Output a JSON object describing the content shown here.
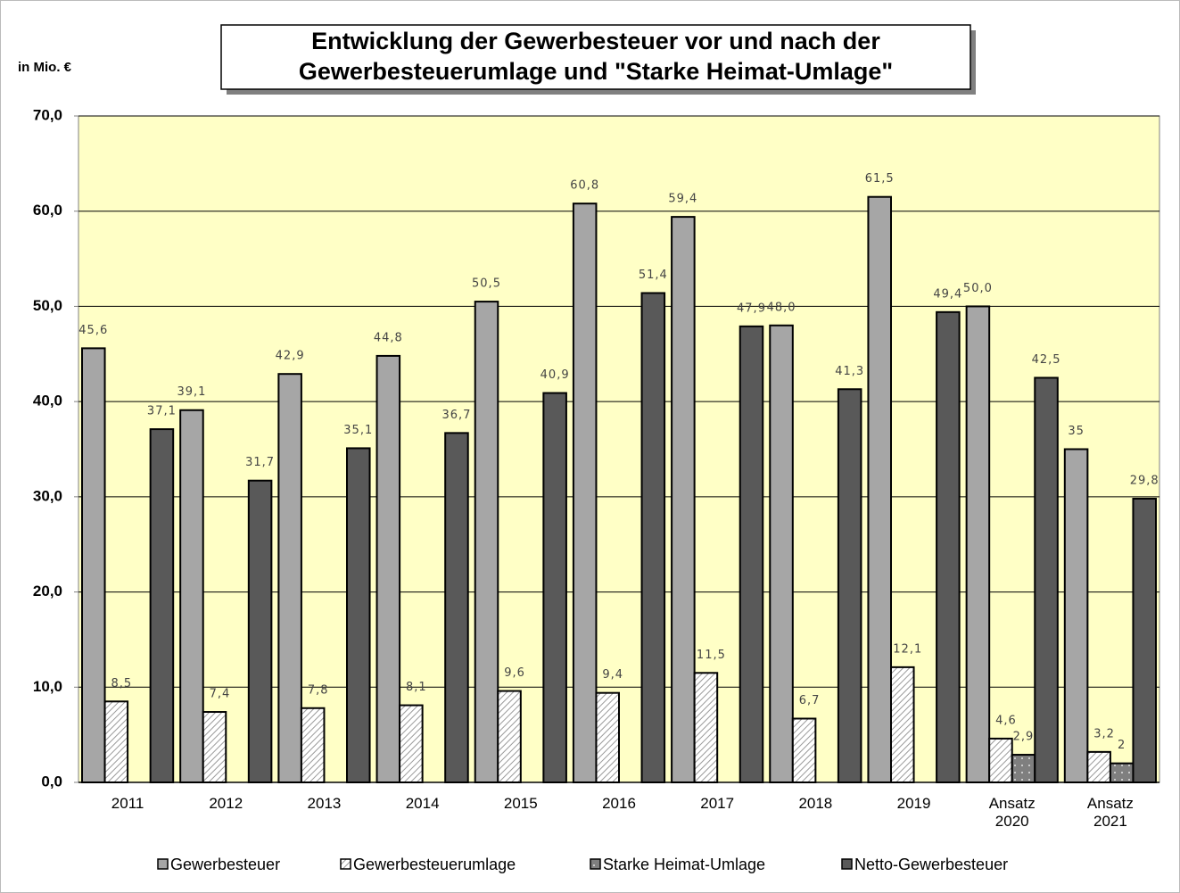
{
  "chart_data": {
    "type": "bar",
    "title": [
      "Entwicklung der Gewerbesteuer vor und nach der",
      "Gewerbesteuerumlage und \"Starke Heimat-Umlage\""
    ],
    "y_label": "in Mio. €",
    "categories": [
      "2011",
      "2012",
      "2013",
      "2014",
      "2015",
      "2016",
      "2017",
      "2018",
      "2019",
      "Ansatz 2020",
      "Ansatz 2021"
    ],
    "series": [
      {
        "name": "Gewerbesteuer",
        "color": "#a6a6a6",
        "pattern": "solid",
        "values": [
          45.6,
          39.1,
          42.9,
          44.8,
          50.5,
          60.8,
          59.4,
          48.0,
          61.5,
          50.0,
          35
        ],
        "value_labels": [
          "45,6",
          "39,1",
          "42,9",
          "44,8",
          "50,5",
          "60,8",
          "59,4",
          "48,0",
          "61,5",
          "50,0",
          "35"
        ]
      },
      {
        "name": "Gewerbesteuerumlage",
        "color": "#ffffff",
        "pattern": "hatch",
        "values": [
          8.5,
          7.4,
          7.8,
          8.1,
          9.6,
          9.4,
          11.5,
          6.7,
          12.1,
          4.6,
          3.2
        ],
        "value_labels": [
          "8,5",
          "7,4",
          "7,8",
          "8,1",
          "9,6",
          "9,4",
          "11,5",
          "6,7",
          "12,1",
          "4,6",
          "3,2"
        ]
      },
      {
        "name": "Starke Heimat-Umlage",
        "color": "#7f7f7f",
        "pattern": "dots",
        "values": [
          null,
          null,
          null,
          null,
          null,
          null,
          null,
          null,
          null,
          2.9,
          2
        ],
        "value_labels": [
          null,
          null,
          null,
          null,
          null,
          null,
          null,
          null,
          null,
          "2,9",
          "2"
        ]
      },
      {
        "name": "Netto-Gewerbesteuer",
        "color": "#595959",
        "pattern": "solid",
        "values": [
          37.1,
          31.7,
          35.1,
          36.7,
          40.9,
          51.4,
          47.9,
          41.3,
          49.4,
          42.5,
          29.8
        ],
        "value_labels": [
          "37,1",
          "31,7",
          "35,1",
          "36,7",
          "40,9",
          "51,4",
          "47,9",
          "41,3",
          "49,4",
          "42,5",
          "29,8"
        ]
      }
    ],
    "ylim": [
      0,
      70
    ],
    "yticks": [
      {
        "value": 0,
        "label": "0,0"
      },
      {
        "value": 10,
        "label": "10,0"
      },
      {
        "value": 20,
        "label": "20,0"
      },
      {
        "value": 30,
        "label": "30,0"
      },
      {
        "value": 40,
        "label": "40,0"
      },
      {
        "value": 50,
        "label": "50,0"
      },
      {
        "value": 60,
        "label": "60,0"
      },
      {
        "value": 70,
        "label": "70,0"
      }
    ],
    "grid": true,
    "plot_background": "#ffffc6",
    "legend": "bottom"
  }
}
